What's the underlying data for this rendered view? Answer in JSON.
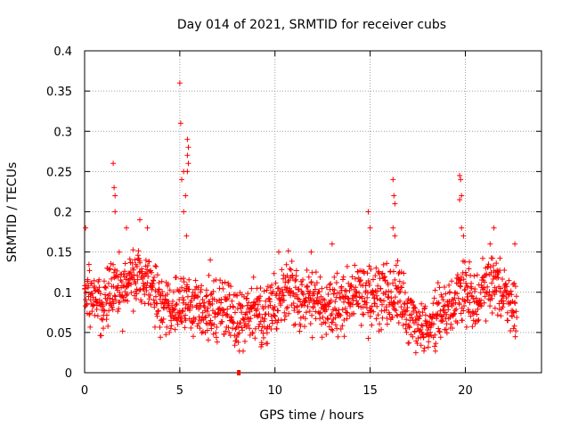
{
  "chart_data": {
    "type": "scatter",
    "title": "Day 014 of 2021, SRMTID for receiver cubs",
    "xlabel": "GPS time / hours",
    "ylabel": "SRMTID / TECUs",
    "xlim": [
      0,
      24
    ],
    "ylim": [
      0,
      0.4
    ],
    "x_ticks": [
      0,
      5,
      10,
      15,
      20
    ],
    "x_tick_labels": [
      "0",
      "5",
      "10",
      "15",
      "20"
    ],
    "y_ticks": [
      0,
      0.05,
      0.1,
      0.15,
      0.2,
      0.25,
      0.3,
      0.35,
      0.4
    ],
    "y_tick_labels": [
      "0",
      "0.05",
      "0.1",
      "0.15",
      "0.2",
      "0.25",
      "0.3",
      "0.35",
      "0.4"
    ],
    "grid": true,
    "marker": "plus",
    "color": "#ff0000",
    "data_end_hours": 22.7,
    "baseline_marker": {
      "x": 8.1,
      "y": 0.0
    },
    "series": [
      {
        "name": "SRMTID",
        "profile": [
          {
            "x": 0.0,
            "median": 0.1
          },
          {
            "x": 0.5,
            "median": 0.09
          },
          {
            "x": 1.0,
            "median": 0.08
          },
          {
            "x": 1.5,
            "median": 0.11
          },
          {
            "x": 2.0,
            "median": 0.1
          },
          {
            "x": 2.5,
            "median": 0.12
          },
          {
            "x": 3.0,
            "median": 0.12
          },
          {
            "x": 3.5,
            "median": 0.11
          },
          {
            "x": 4.0,
            "median": 0.09
          },
          {
            "x": 4.5,
            "median": 0.08
          },
          {
            "x": 5.0,
            "median": 0.08
          },
          {
            "x": 5.5,
            "median": 0.09
          },
          {
            "x": 6.0,
            "median": 0.08
          },
          {
            "x": 7.0,
            "median": 0.08
          },
          {
            "x": 8.0,
            "median": 0.07
          },
          {
            "x": 9.0,
            "median": 0.07
          },
          {
            "x": 10.0,
            "median": 0.08
          },
          {
            "x": 10.5,
            "median": 0.11
          },
          {
            "x": 11.0,
            "median": 0.1
          },
          {
            "x": 12.0,
            "median": 0.09
          },
          {
            "x": 13.0,
            "median": 0.08
          },
          {
            "x": 14.0,
            "median": 0.09
          },
          {
            "x": 15.0,
            "median": 0.1
          },
          {
            "x": 16.0,
            "median": 0.09
          },
          {
            "x": 16.5,
            "median": 0.1
          },
          {
            "x": 17.0,
            "median": 0.07
          },
          {
            "x": 18.0,
            "median": 0.05
          },
          {
            "x": 19.0,
            "median": 0.08
          },
          {
            "x": 20.0,
            "median": 0.1
          },
          {
            "x": 20.5,
            "median": 0.08
          },
          {
            "x": 21.0,
            "median": 0.1
          },
          {
            "x": 21.5,
            "median": 0.12
          },
          {
            "x": 22.0,
            "median": 0.1
          },
          {
            "x": 22.7,
            "median": 0.08
          }
        ],
        "spikes": [
          {
            "x": 0.05,
            "y": 0.18
          },
          {
            "x": 1.5,
            "y": 0.26
          },
          {
            "x": 1.55,
            "y": 0.23
          },
          {
            "x": 1.6,
            "y": 0.22
          },
          {
            "x": 1.6,
            "y": 0.2
          },
          {
            "x": 2.2,
            "y": 0.18
          },
          {
            "x": 2.9,
            "y": 0.19
          },
          {
            "x": 3.3,
            "y": 0.18
          },
          {
            "x": 5.0,
            "y": 0.36
          },
          {
            "x": 5.05,
            "y": 0.31
          },
          {
            "x": 5.4,
            "y": 0.29
          },
          {
            "x": 5.45,
            "y": 0.28
          },
          {
            "x": 5.4,
            "y": 0.27
          },
          {
            "x": 5.45,
            "y": 0.26
          },
          {
            "x": 5.4,
            "y": 0.25
          },
          {
            "x": 5.1,
            "y": 0.24
          },
          {
            "x": 5.2,
            "y": 0.25
          },
          {
            "x": 5.3,
            "y": 0.22
          },
          {
            "x": 5.2,
            "y": 0.2
          },
          {
            "x": 5.35,
            "y": 0.17
          },
          {
            "x": 6.6,
            "y": 0.14
          },
          {
            "x": 10.2,
            "y": 0.15
          },
          {
            "x": 11.9,
            "y": 0.15
          },
          {
            "x": 13.0,
            "y": 0.16
          },
          {
            "x": 14.9,
            "y": 0.2
          },
          {
            "x": 15.0,
            "y": 0.18
          },
          {
            "x": 16.2,
            "y": 0.24
          },
          {
            "x": 16.25,
            "y": 0.22
          },
          {
            "x": 16.3,
            "y": 0.21
          },
          {
            "x": 16.2,
            "y": 0.18
          },
          {
            "x": 16.3,
            "y": 0.17
          },
          {
            "x": 19.7,
            "y": 0.245
          },
          {
            "x": 19.75,
            "y": 0.24
          },
          {
            "x": 19.8,
            "y": 0.22
          },
          {
            "x": 19.7,
            "y": 0.215
          },
          {
            "x": 19.8,
            "y": 0.18
          },
          {
            "x": 19.9,
            "y": 0.17
          },
          {
            "x": 21.5,
            "y": 0.18
          },
          {
            "x": 21.3,
            "y": 0.16
          },
          {
            "x": 22.6,
            "y": 0.16
          }
        ]
      }
    ]
  }
}
